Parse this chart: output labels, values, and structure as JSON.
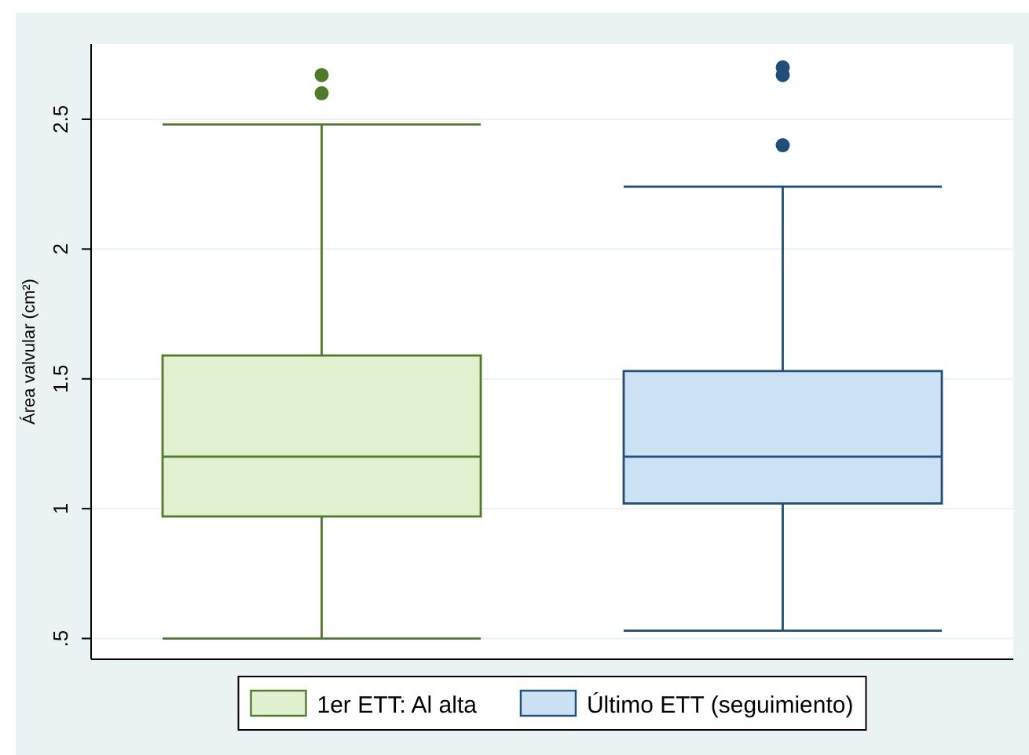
{
  "chart_data": {
    "type": "box",
    "ylabel": "Área valvular (cm²)",
    "categories": [
      null
    ],
    "series": [
      {
        "name": "1er ETT: Al alta",
        "color": "#4f7a28",
        "boxes": [
          {
            "low": 0.5,
            "q1": 0.97,
            "median": 1.2,
            "q3": 1.59,
            "high": 2.48,
            "outliers": [
              2.6,
              2.67
            ]
          }
        ]
      },
      {
        "name": "Último ETT (seguimiento)",
        "color": "#1f4e79",
        "boxes": [
          {
            "low": 0.53,
            "q1": 1.02,
            "median": 1.2,
            "q3": 1.53,
            "high": 2.24,
            "outliers": [
              2.4,
              2.67,
              2.7
            ]
          }
        ]
      }
    ],
    "ylim": [
      0.42,
      2.79
    ],
    "yticks": [
      {
        "value": 0.5,
        "label": ".5"
      },
      1,
      1.5,
      2,
      2.5
    ],
    "grid": "y",
    "legend": "bottom",
    "tick_labels": "y"
  }
}
